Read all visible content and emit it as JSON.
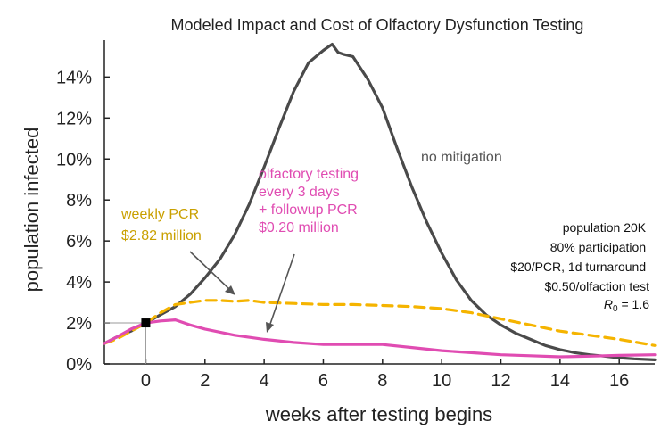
{
  "chart_data": {
    "type": "line",
    "title": "Modeled Impact and Cost of Olfactory Dysfunction Testing",
    "xlabel": "weeks after testing begins",
    "ylabel": "population infected",
    "xlim": [
      -1.4,
      17.2
    ],
    "ylim": [
      0,
      15.8
    ],
    "xticks": [
      0,
      2,
      4,
      6,
      8,
      10,
      12,
      14,
      16
    ],
    "yticks": [
      0,
      2,
      4,
      6,
      8,
      10,
      12,
      14
    ],
    "xtick_labels": [
      "0",
      "2",
      "4",
      "6",
      "8",
      "10",
      "12",
      "14",
      "16"
    ],
    "ytick_labels": [
      "0%",
      "2%",
      "4%",
      "6%",
      "8%",
      "10%",
      "12%",
      "14%"
    ],
    "series": [
      {
        "name": "no mitigation",
        "color": "#4a4a4a",
        "dash": "solid",
        "x": [
          -1.4,
          -1.0,
          -0.5,
          0.0,
          0.5,
          1.0,
          1.5,
          2.0,
          2.5,
          3.0,
          3.5,
          4.0,
          4.5,
          5.0,
          5.5,
          6.0,
          6.3,
          6.5,
          6.7,
          7.0,
          7.5,
          8.0,
          8.5,
          9.0,
          9.5,
          10.0,
          10.5,
          11.0,
          11.5,
          12.0,
          12.5,
          13.0,
          13.5,
          14.0,
          14.5,
          15.0,
          15.5,
          16.0,
          16.5,
          17.2
        ],
        "values": [
          1.0,
          1.3,
          1.6,
          2.0,
          2.4,
          2.8,
          3.4,
          4.2,
          5.1,
          6.3,
          7.8,
          9.6,
          11.5,
          13.3,
          14.7,
          15.3,
          15.6,
          15.2,
          15.1,
          15.0,
          13.9,
          12.5,
          10.5,
          8.6,
          6.9,
          5.4,
          4.1,
          3.1,
          2.4,
          1.9,
          1.5,
          1.2,
          0.9,
          0.7,
          0.55,
          0.45,
          0.38,
          0.3,
          0.25,
          0.2
        ]
      },
      {
        "name": "weekly PCR",
        "color": "#f5b400",
        "dash": "dashed",
        "x": [
          -1.4,
          -1.0,
          -0.5,
          0.0,
          0.5,
          1.0,
          1.5,
          2.0,
          2.5,
          3.0,
          3.5,
          4.0,
          5.0,
          6.0,
          7.0,
          8.0,
          9.0,
          10.0,
          11.0,
          12.0,
          13.0,
          14.0,
          15.0,
          16.0,
          17.2
        ],
        "values": [
          1.0,
          1.2,
          1.6,
          2.0,
          2.5,
          2.9,
          3.0,
          3.1,
          3.1,
          3.05,
          3.1,
          3.0,
          2.95,
          2.9,
          2.9,
          2.85,
          2.8,
          2.7,
          2.5,
          2.2,
          1.9,
          1.6,
          1.4,
          1.2,
          0.9
        ]
      },
      {
        "name": "olfactory testing every 3 days + followup PCR",
        "color": "#e04cb2",
        "dash": "solid",
        "x": [
          -1.4,
          -1.0,
          -0.5,
          0.0,
          0.5,
          1.0,
          1.5,
          2.0,
          3.0,
          4.0,
          5.0,
          6.0,
          7.0,
          8.0,
          9.0,
          10.0,
          11.0,
          12.0,
          13.0,
          14.0,
          15.0,
          16.0,
          17.2
        ],
        "values": [
          1.0,
          1.3,
          1.7,
          2.0,
          2.1,
          2.15,
          1.9,
          1.7,
          1.4,
          1.2,
          1.05,
          0.95,
          0.95,
          0.95,
          0.8,
          0.65,
          0.55,
          0.45,
          0.4,
          0.35,
          0.38,
          0.42,
          0.45
        ]
      }
    ],
    "annotations": {
      "no_mitigation": "no mitigation",
      "weekly_pcr": [
        "weekly PCR",
        "$2.82 million"
      ],
      "olfactory": [
        "olfactory testing",
        "every 3 days",
        "+ followup PCR",
        "$0.20 million"
      ],
      "info_box": [
        "population 20K",
        "80% participation",
        "$20/PCR, 1d turnaround",
        "$0.50/olfaction test"
      ],
      "r0": {
        "symbol": "R",
        "subscript": "0",
        "value": " = 1.6"
      }
    },
    "marker": {
      "x": 0,
      "y": 2
    }
  }
}
